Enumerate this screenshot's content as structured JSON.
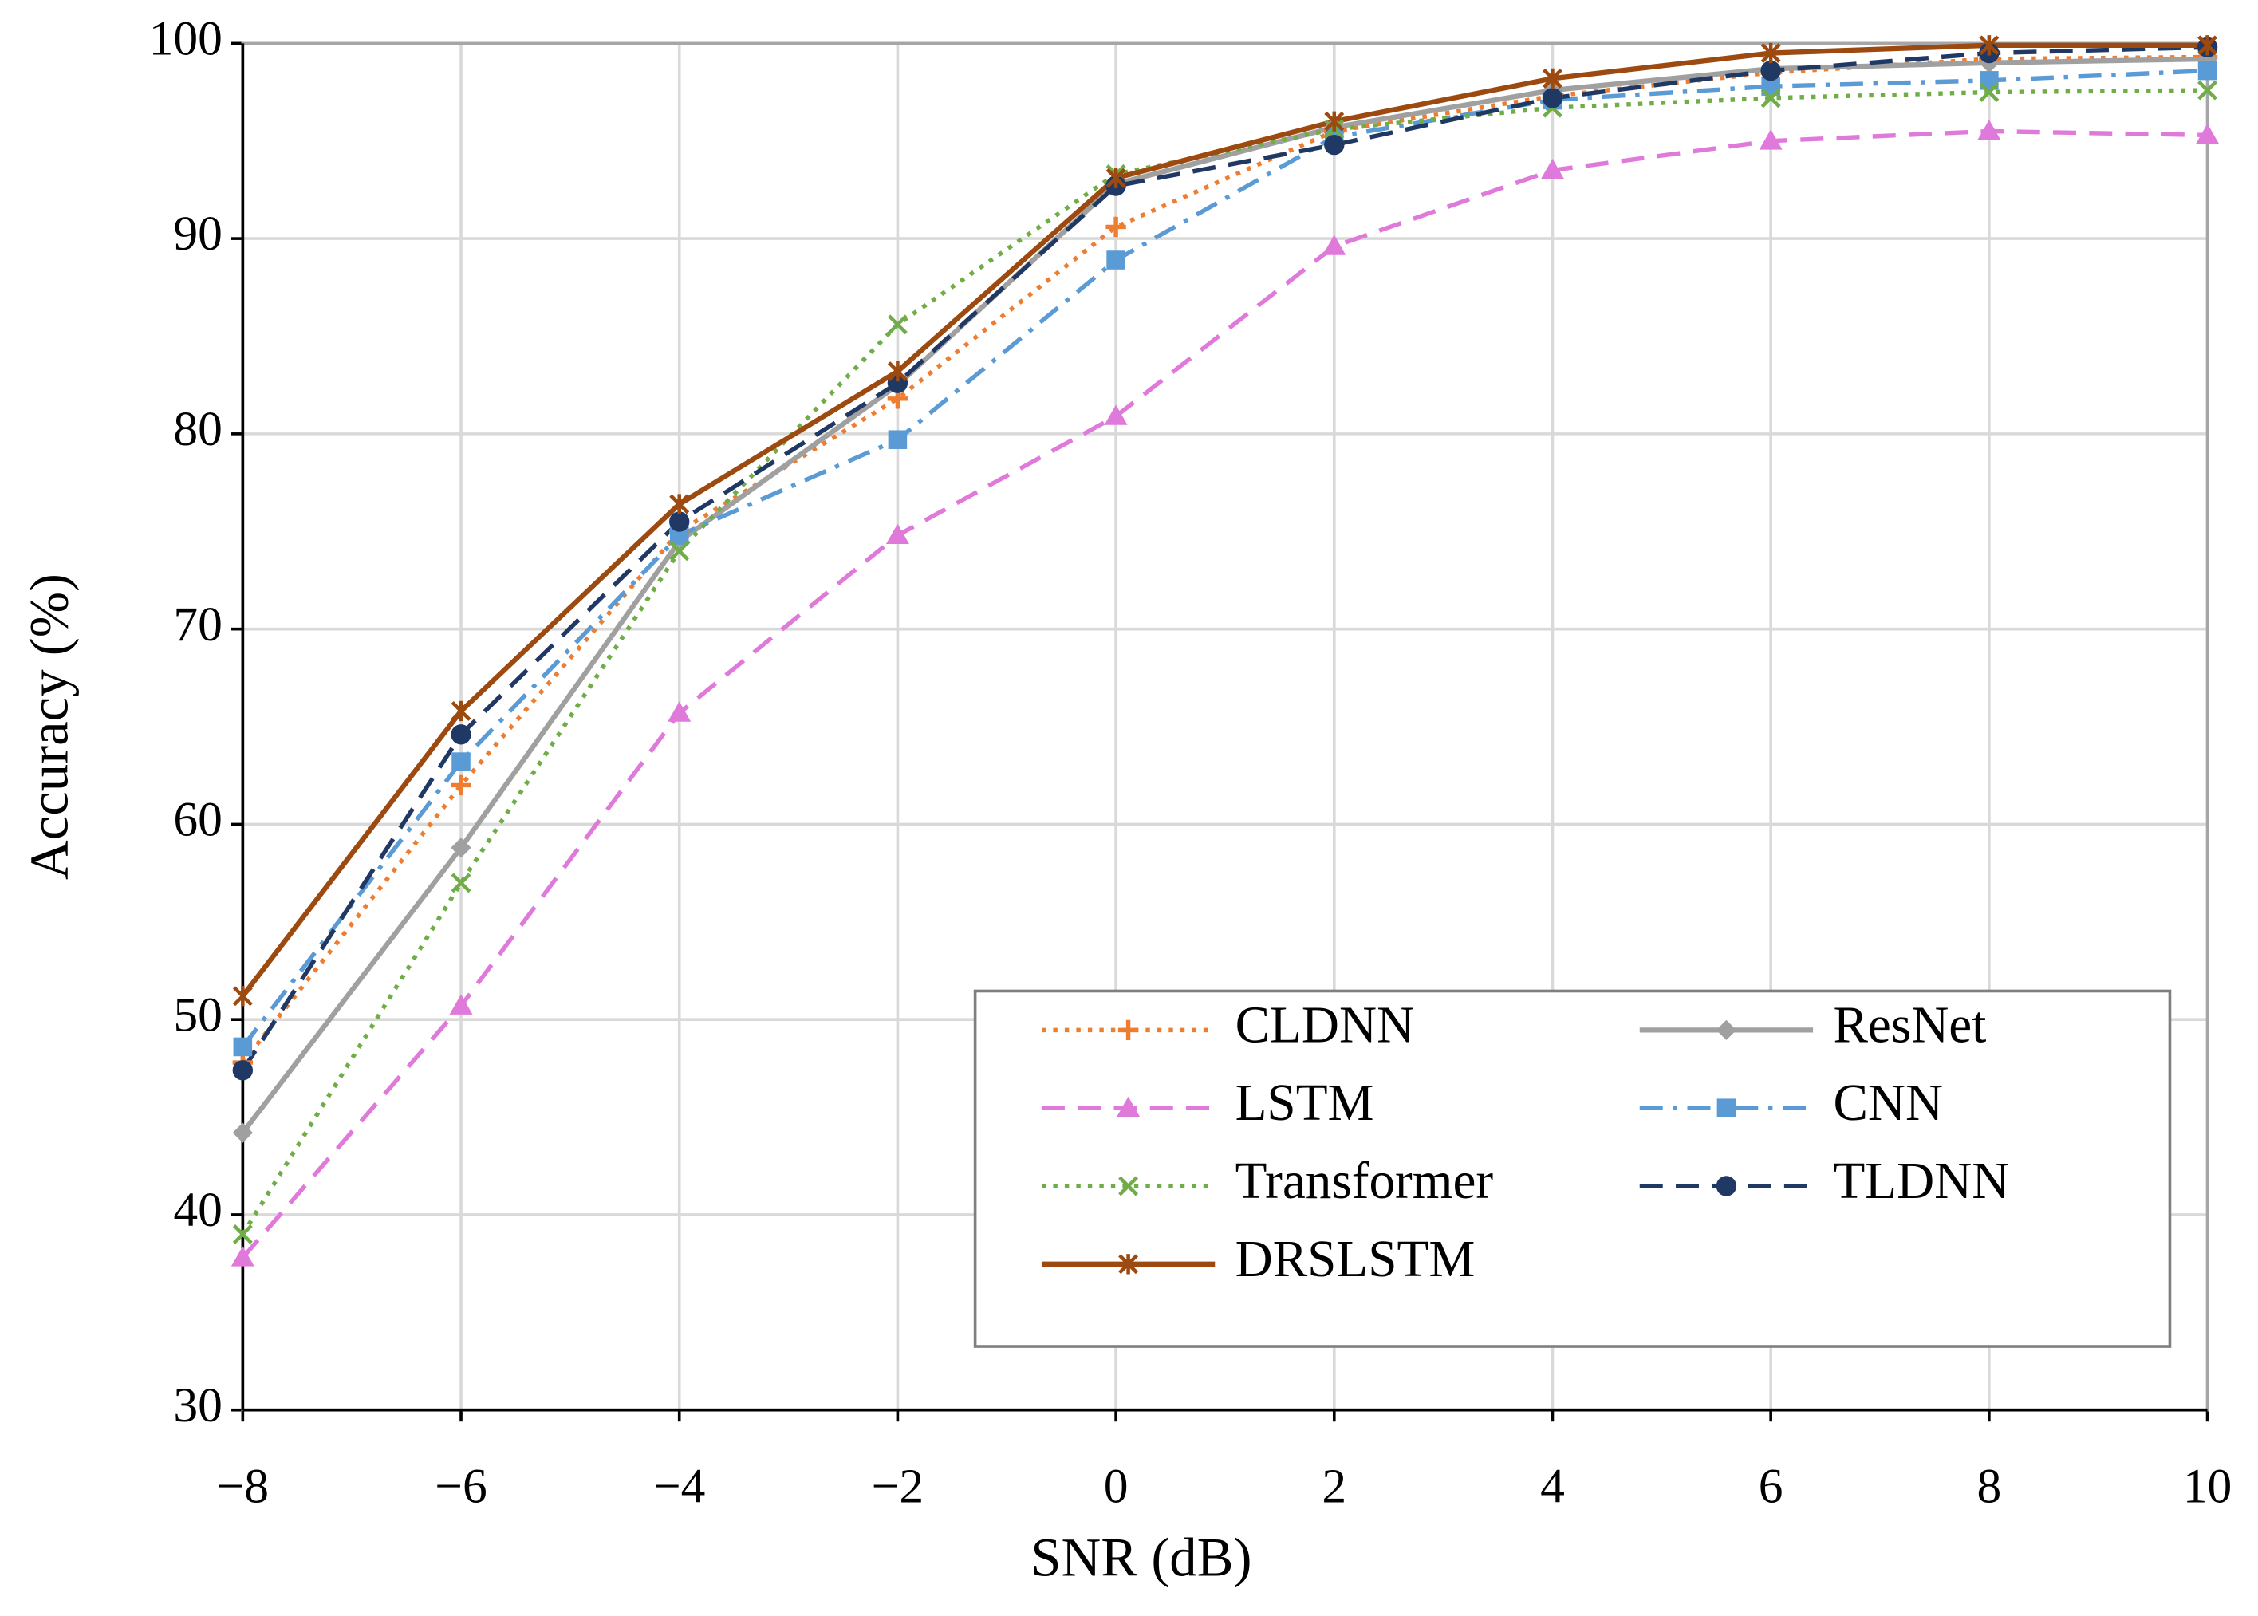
{
  "chart_data": {
    "type": "line",
    "x_label": "SNR (dB)",
    "y_label": "Accuracy (%)",
    "x": [
      -8,
      -6,
      -4,
      -2,
      0,
      2,
      4,
      6,
      8,
      10
    ],
    "xlim": [
      -8,
      10
    ],
    "xticks": [
      {
        "value": -8,
        "label": "−8"
      },
      {
        "value": -6,
        "label": "−6"
      },
      {
        "value": -4,
        "label": "−4"
      },
      {
        "value": -2,
        "label": "−2"
      },
      0,
      2,
      4,
      6,
      8,
      10
    ],
    "ylim": [
      30,
      100
    ],
    "yticks": [
      30,
      40,
      50,
      60,
      70,
      80,
      90,
      100
    ],
    "grid": true,
    "legend": "lower right",
    "series": [
      {
        "name": "CLDNN",
        "color": "#ed7d31",
        "dash": "dotted",
        "marker": "plus",
        "values": [
          47.8,
          62,
          75,
          81.8,
          90.6,
          95.5,
          97.3,
          98.5,
          99.2,
          99.3
        ]
      },
      {
        "name": "ResNet",
        "color": "#a0a0a0",
        "dash": "solid",
        "marker": "diamond",
        "values": [
          44.2,
          58.8,
          74.5,
          82.5,
          92.8,
          95.7,
          97.6,
          98.7,
          99,
          99.2
        ]
      },
      {
        "name": "LSTM",
        "color": "#e07ada",
        "dash": "dashed",
        "marker": "triangle",
        "values": [
          37.8,
          50.7,
          65.7,
          74.8,
          80.9,
          89.6,
          93.5,
          95,
          95.5,
          95.3
        ]
      },
      {
        "name": "CNN",
        "color": "#5b9bd5",
        "dash": "dashdot",
        "marker": "square",
        "values": [
          48.6,
          63.2,
          74.8,
          79.7,
          88.9,
          95.2,
          97.1,
          97.8,
          98.1,
          98.6
        ]
      },
      {
        "name": "Transformer",
        "color": "#70ad47",
        "dash": "dotted",
        "marker": "x",
        "values": [
          39,
          57,
          74,
          85.6,
          93.3,
          95.6,
          96.7,
          97.2,
          97.5,
          97.6
        ]
      },
      {
        "name": "TLDNN",
        "color": "#203864",
        "dash": "dashed",
        "marker": "circle",
        "values": [
          47.4,
          64.6,
          75.5,
          82.6,
          92.7,
          94.8,
          97.2,
          98.6,
          99.5,
          99.8
        ]
      },
      {
        "name": "DRSLSTM",
        "color": "#9c4a10",
        "dash": "solid",
        "marker": "star",
        "values": [
          51.2,
          65.8,
          76.4,
          83.2,
          93.1,
          96,
          98.2,
          99.5,
          99.9,
          99.9
        ]
      }
    ]
  }
}
